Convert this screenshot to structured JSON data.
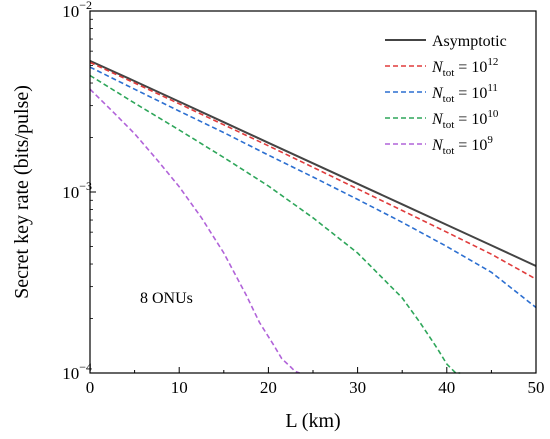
{
  "chart_data": {
    "type": "line",
    "title": "",
    "xlabel": "L (km)",
    "ylabel": "Secret key rate (bits/pulse)",
    "xlim": [
      0,
      50
    ],
    "ylim": [
      0.0001,
      0.01
    ],
    "yscale": "log",
    "x_ticks": [
      0,
      10,
      20,
      30,
      40,
      50
    ],
    "y_ticks": [
      {
        "base": "10",
        "exp": "−4",
        "value": 0.0001
      },
      {
        "base": "10",
        "exp": "−3",
        "value": 0.001
      },
      {
        "base": "10",
        "exp": "−2",
        "value": 0.01
      }
    ],
    "grid": false,
    "legend_position": "top-right",
    "annotation": "8 ONUs",
    "series": [
      {
        "name": "Asymptotic",
        "legend": {
          "main": "Asymptotic"
        },
        "color": "#444444",
        "style": "solid",
        "x": [
          0,
          5,
          10,
          15,
          20,
          25,
          30,
          35,
          40,
          45,
          50
        ],
        "y": [
          0.0053,
          0.0041,
          0.00316,
          0.00243,
          0.00187,
          0.00144,
          0.00111,
          0.000855,
          0.000658,
          0.000507,
          0.00039
        ]
      },
      {
        "name": "N_tot = 10^12",
        "legend": {
          "sym": "N",
          "sub": "tot",
          "eq": " = 10",
          "sup": "12"
        },
        "color": "#e03c3c",
        "style": "dashed",
        "x": [
          0,
          5,
          10,
          15,
          20,
          25,
          30,
          35,
          40,
          45,
          50
        ],
        "y": [
          0.0052,
          0.004,
          0.00307,
          0.00235,
          0.0018,
          0.00137,
          0.00104,
          0.00079,
          0.0006,
          0.000453,
          0.00033
        ]
      },
      {
        "name": "N_tot = 10^11",
        "legend": {
          "sym": "N",
          "sub": "tot",
          "eq": " = 10",
          "sup": "11"
        },
        "color": "#2c6fd1",
        "style": "dashed",
        "x": [
          0,
          5,
          10,
          15,
          20,
          25,
          30,
          35,
          40,
          45,
          50
        ],
        "y": [
          0.0049,
          0.0037,
          0.0028,
          0.00213,
          0.0016,
          0.00121,
          0.00091,
          0.00068,
          0.0005,
          0.00036,
          0.00023
        ]
      },
      {
        "name": "N_tot = 10^10",
        "legend": {
          "sym": "N",
          "sub": "tot",
          "eq": " = 10",
          "sup": "10"
        },
        "color": "#2ea65a",
        "style": "dashed",
        "x": [
          0,
          5,
          10,
          15,
          20,
          25,
          30,
          35,
          37,
          39,
          40,
          41,
          41.5
        ],
        "y": [
          0.0044,
          0.0031,
          0.0022,
          0.00155,
          0.00108,
          0.00072,
          0.00046,
          0.00026,
          0.00019,
          0.000135,
          0.000112,
          0.0001,
          0.0001
        ]
      },
      {
        "name": "N_tot = 10^9",
        "legend": {
          "sym": "N",
          "sub": "tot",
          "eq": " = 10",
          "sup": "9"
        },
        "color": "#b163d9",
        "style": "dashed",
        "x": [
          0,
          2.5,
          5,
          7.5,
          10,
          12.5,
          15,
          17.5,
          19,
          20.5,
          21.5,
          22.5,
          23,
          23.5
        ],
        "y": [
          0.0037,
          0.0028,
          0.0021,
          0.00151,
          0.00107,
          0.00072,
          0.00046,
          0.00027,
          0.00019,
          0.000145,
          0.00012,
          0.000108,
          0.000102,
          0.0001
        ]
      }
    ]
  }
}
